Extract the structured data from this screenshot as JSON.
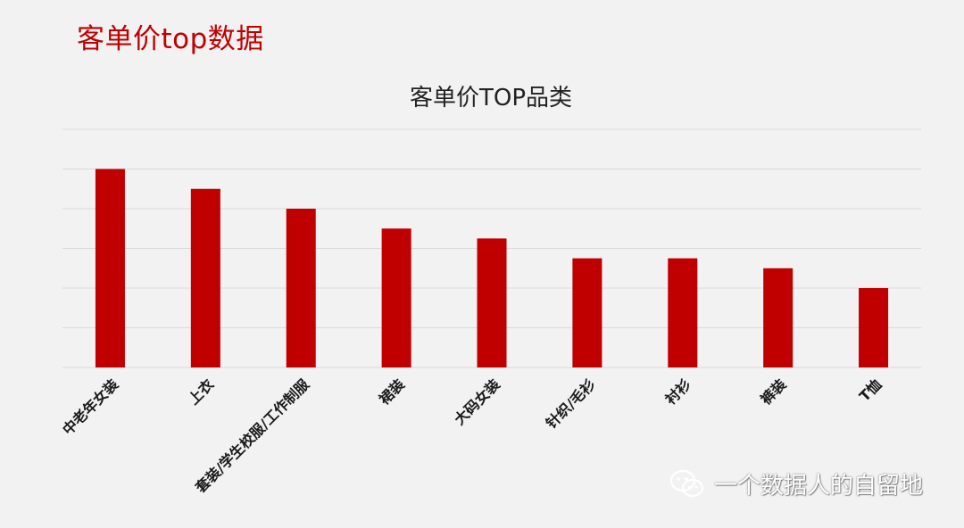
{
  "page": {
    "title": "客单价top数据"
  },
  "watermark": {
    "text": "一个数据人的自留地",
    "icon": "wechat-icon"
  },
  "colors": {
    "bar": "#c00000",
    "title": "#c00000",
    "grid": "#d9d9d9",
    "background": "#f2f2f2"
  },
  "chart_data": {
    "type": "bar",
    "title": "客单价TOP品类",
    "xlabel": "",
    "ylabel": "",
    "ylim": [
      0,
      6
    ],
    "grid": true,
    "categories": [
      "中老年女装",
      "上衣",
      "套装/学生校服/工作制服",
      "裙装",
      "大码女装",
      "针织/毛衫",
      "衬衫",
      "裤装",
      "T恤"
    ],
    "values": [
      5.0,
      4.5,
      4.0,
      3.5,
      3.25,
      2.75,
      2.75,
      2.5,
      2.0
    ]
  }
}
